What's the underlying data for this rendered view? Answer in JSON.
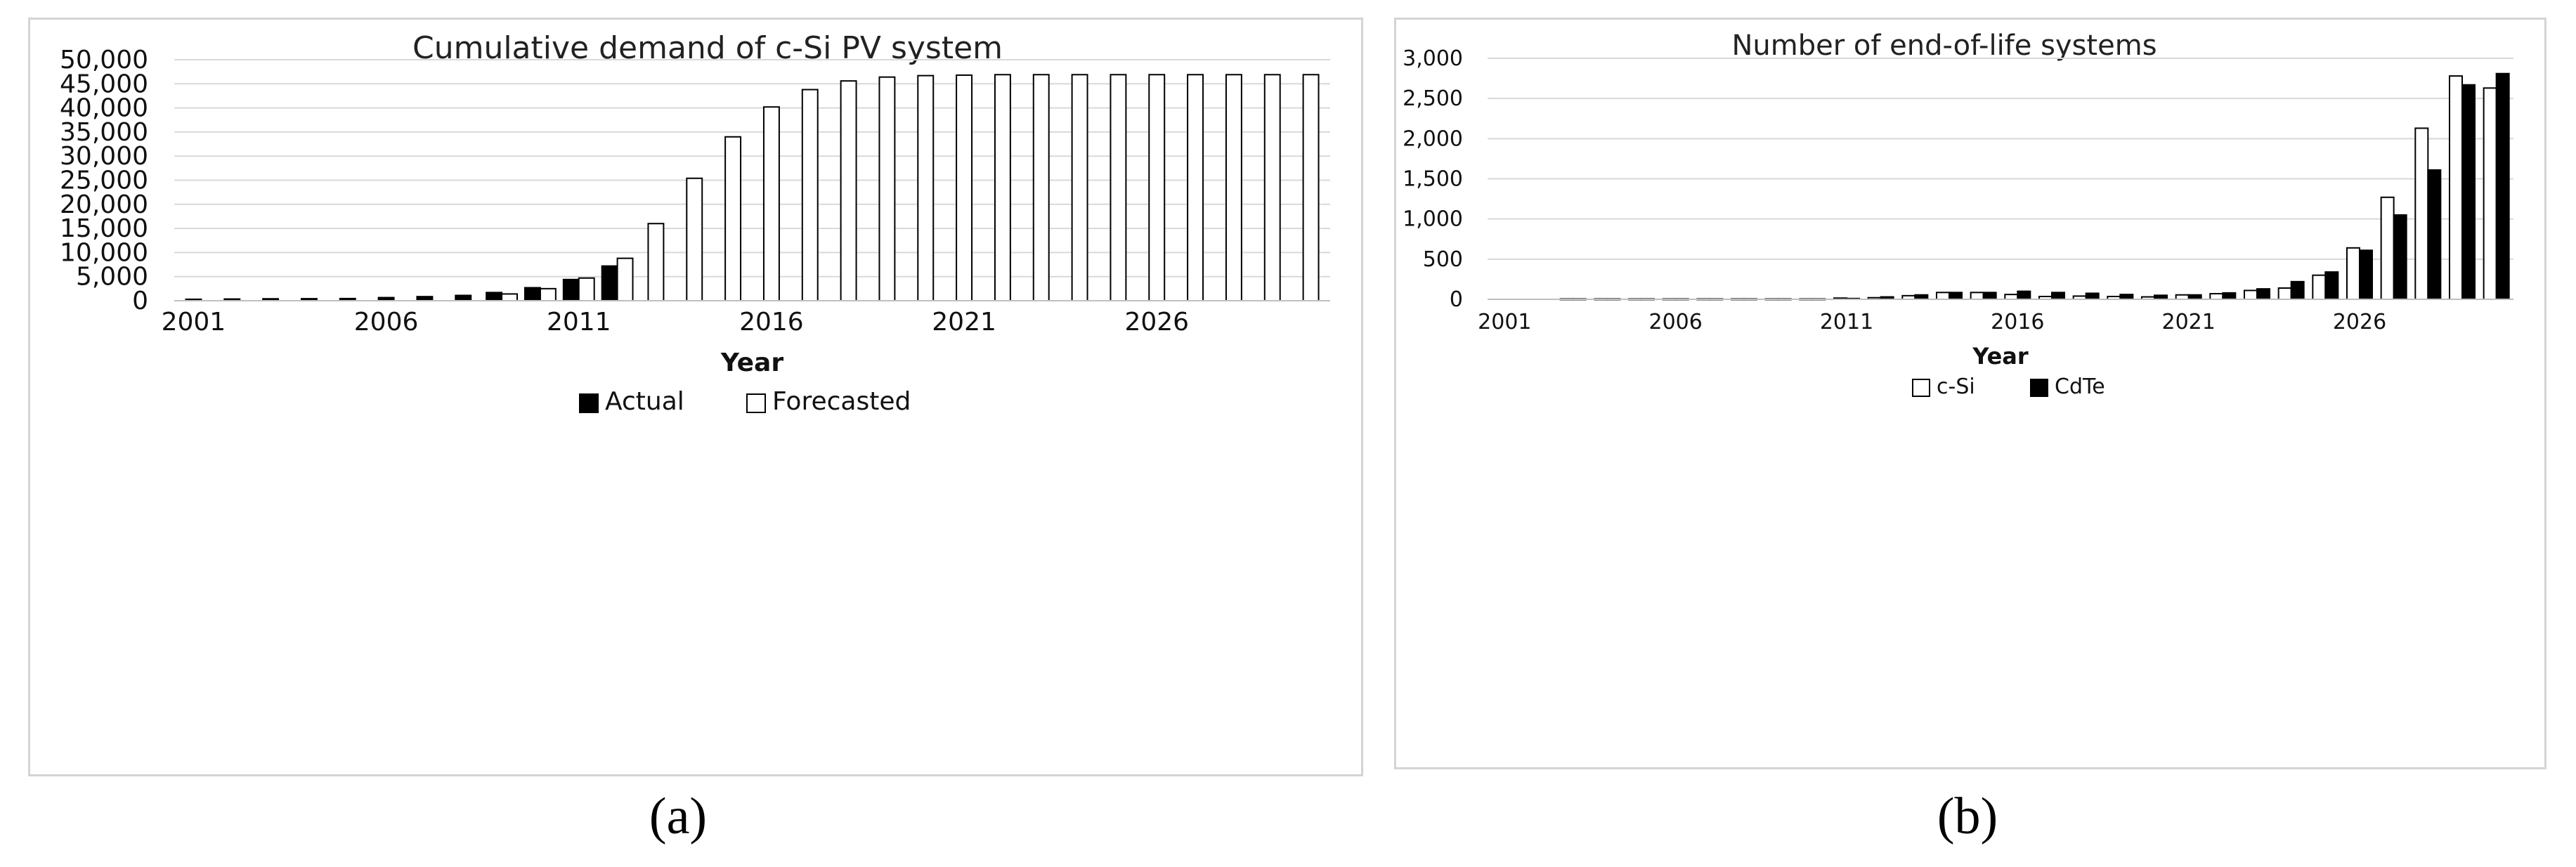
{
  "chart_data": [
    {
      "type": "bar",
      "title": "Cumulative demand of c-Si PV system",
      "xlabel": "Year",
      "ylabel": "",
      "ylim": [
        0,
        50000
      ],
      "yticks": [
        "0",
        "5,000",
        "10,000",
        "15,000",
        "20,000",
        "25,000",
        "30,000",
        "35,000",
        "40,000",
        "45,000",
        "50,000"
      ],
      "xtick_labels": [
        "2001",
        "2006",
        "2011",
        "2016",
        "2021",
        "2026"
      ],
      "categories": [
        "2001",
        "2002",
        "2003",
        "2004",
        "2005",
        "2006",
        "2007",
        "2008",
        "2009",
        "2010",
        "2011",
        "2012",
        "2013",
        "2014",
        "2015",
        "2016",
        "2017",
        "2018",
        "2019",
        "2020",
        "2021",
        "2022",
        "2023",
        "2024",
        "2025",
        "2026",
        "2027",
        "2028",
        "2029",
        "2030"
      ],
      "grid": true,
      "legend": "bottom",
      "series": [
        {
          "name": "Actual",
          "color": "#000000",
          "values": [
            300,
            350,
            400,
            420,
            450,
            650,
            850,
            1100,
            1700,
            2700,
            4400,
            7200,
            null,
            null,
            null,
            null,
            null,
            null,
            null,
            null,
            null,
            null,
            null,
            null,
            null,
            null,
            null,
            null,
            null,
            null
          ]
        },
        {
          "name": "Forecasted",
          "color": "#ffffff",
          "values": [
            null,
            null,
            null,
            null,
            null,
            null,
            null,
            null,
            1400,
            2500,
            4700,
            8800,
            16000,
            25400,
            34000,
            40200,
            43800,
            45600,
            46400,
            46700,
            46800,
            46900,
            46900,
            46900,
            46900,
            46900,
            46900,
            46900,
            46900,
            46900
          ]
        }
      ]
    },
    {
      "type": "bar",
      "title": "Number of end-of-life systems",
      "xlabel": "Year",
      "ylabel": "",
      "ylim": [
        0,
        3000
      ],
      "yticks": [
        "0",
        "500",
        "1,000",
        "1,500",
        "2,000",
        "2,500",
        "3,000"
      ],
      "xtick_labels": [
        "2001",
        "2006",
        "2011",
        "2016",
        "2021",
        "2026"
      ],
      "categories": [
        "2001",
        "2002",
        "2003",
        "2004",
        "2005",
        "2006",
        "2007",
        "2008",
        "2009",
        "2010",
        "2011",
        "2012",
        "2013",
        "2014",
        "2015",
        "2016",
        "2017",
        "2018",
        "2019",
        "2020",
        "2021",
        "2022",
        "2023",
        "2024",
        "2025",
        "2026",
        "2027",
        "2028",
        "2029",
        "2030"
      ],
      "grid": true,
      "legend": "bottom",
      "series": [
        {
          "name": "c-Si",
          "color": "#ffffff",
          "values": [
            0,
            0,
            5,
            5,
            5,
            5,
            5,
            5,
            5,
            5,
            15,
            20,
            45,
            85,
            85,
            60,
            35,
            40,
            35,
            30,
            55,
            70,
            110,
            140,
            300,
            640,
            1270,
            2130,
            2780,
            2630
          ]
        },
        {
          "name": "CdTe",
          "color": "#000000",
          "values": [
            0,
            0,
            5,
            5,
            5,
            5,
            5,
            5,
            5,
            5,
            10,
            30,
            55,
            85,
            85,
            100,
            85,
            75,
            60,
            50,
            55,
            80,
            130,
            220,
            340,
            610,
            1050,
            1610,
            2670,
            2810
          ]
        }
      ]
    }
  ],
  "panel_labels": {
    "a": "(a)",
    "b": "(b)"
  }
}
